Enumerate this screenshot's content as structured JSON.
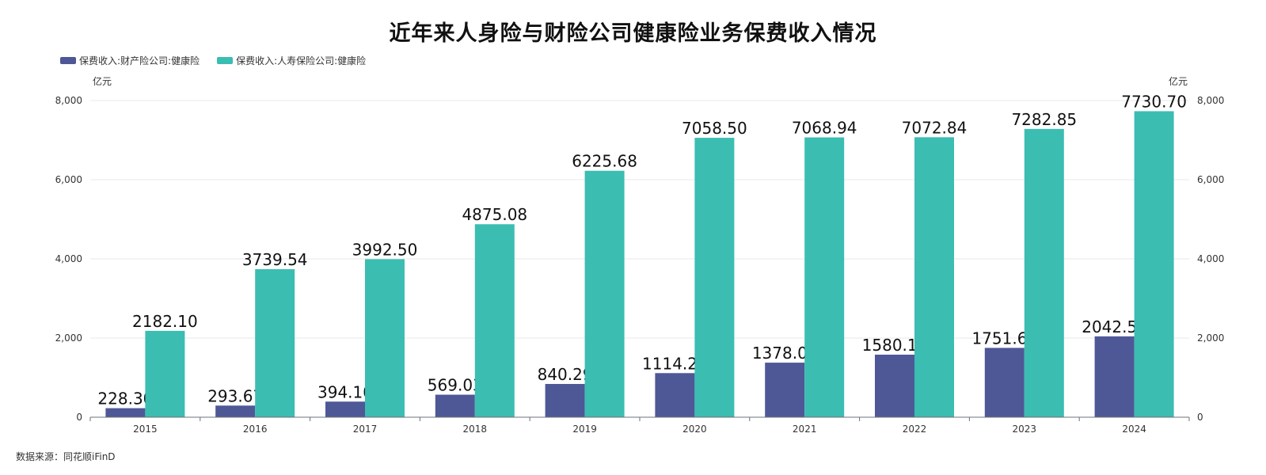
{
  "chart_data": {
    "type": "bar",
    "title": "近年来人身险与财险公司健康险业务保费收入情况",
    "categories": [
      "2015",
      "2016",
      "2017",
      "2018",
      "2019",
      "2020",
      "2021",
      "2022",
      "2023",
      "2024"
    ],
    "series": [
      {
        "name": "保费收入:财产险公司:健康险",
        "color": "#4e5897",
        "values": [
          228.3,
          293.67,
          394.1,
          569.03,
          840.29,
          1114.21,
          1378.08,
          1580.1,
          1751.69,
          2042.5
        ],
        "labels": [
          "228.30",
          "293.67",
          "394.10",
          "569.03",
          "840.29",
          "1114.21",
          "1378.08",
          "1580.10",
          "1751.69",
          "2042.50"
        ]
      },
      {
        "name": "保费收入:人寿保险公司:健康险",
        "color": "#3bbdb2",
        "values": [
          2182.1,
          3739.54,
          3992.5,
          4875.08,
          6225.68,
          7058.5,
          7068.94,
          7072.84,
          7282.85,
          7730.7
        ],
        "labels": [
          "2182.10",
          "3739.54",
          "3992.50",
          "4875.08",
          "6225.68",
          "7058.50",
          "7068.94",
          "7072.84",
          "7282.85",
          "7730.70"
        ]
      }
    ],
    "y_left": {
      "unit": "亿元",
      "ylim": [
        0,
        8000
      ],
      "ticks": [
        0,
        2000,
        4000,
        6000,
        8000
      ],
      "tick_labels": [
        "0",
        "2,000",
        "4,000",
        "6,000",
        "8,000"
      ]
    },
    "y_right": {
      "unit": "亿元",
      "ylim": [
        0,
        8000
      ],
      "ticks": [
        0,
        2000,
        4000,
        6000,
        8000
      ],
      "tick_labels": [
        "0",
        "2,000",
        "4,000",
        "6,000",
        "8,000"
      ]
    },
    "grid": true,
    "legend_position": "top-left"
  },
  "source_text": "数据来源：同花顺iFinD"
}
